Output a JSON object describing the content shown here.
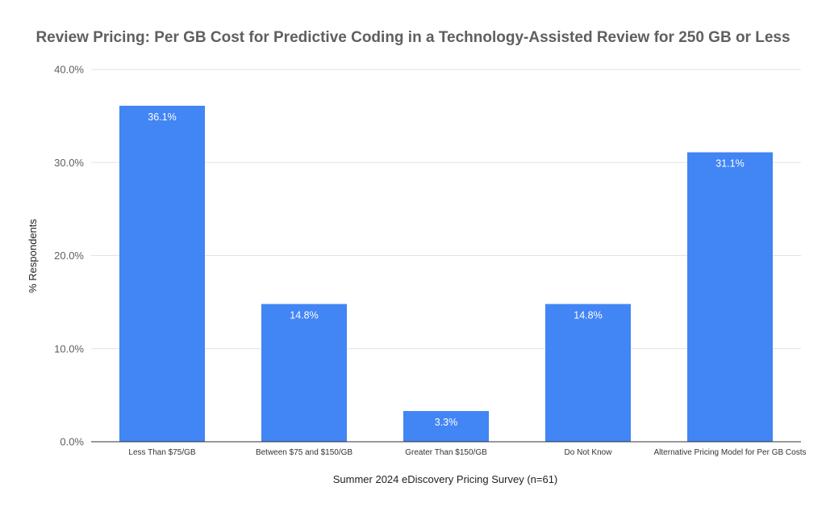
{
  "chart_data": {
    "type": "bar",
    "title": "Review Pricing: Per GB Cost for Predictive Coding in a Technology-Assisted Review for 250 GB or Less",
    "xlabel": "Summer 2024 eDiscovery Pricing Survey (n=61)",
    "ylabel": "% Respondents",
    "categories": [
      "Less Than $75/GB",
      "Between $75 and $150/GB",
      "Greater Than $150/GB",
      "Do Not Know",
      "Alternative Pricing Model for Per GB Costs"
    ],
    "values": [
      36.1,
      14.8,
      3.3,
      14.8,
      31.1
    ],
    "data_labels": [
      "36.1%",
      "14.8%",
      "3.3%",
      "14.8%",
      "31.1%"
    ],
    "ylim": [
      0,
      40
    ],
    "yticks": [
      0,
      10,
      20,
      30,
      40
    ],
    "ytick_labels": [
      "0.0%",
      "10.0%",
      "20.0%",
      "30.0%",
      "40.0%"
    ],
    "grid": true,
    "legend": "none",
    "bar_color": "#4285f4"
  }
}
